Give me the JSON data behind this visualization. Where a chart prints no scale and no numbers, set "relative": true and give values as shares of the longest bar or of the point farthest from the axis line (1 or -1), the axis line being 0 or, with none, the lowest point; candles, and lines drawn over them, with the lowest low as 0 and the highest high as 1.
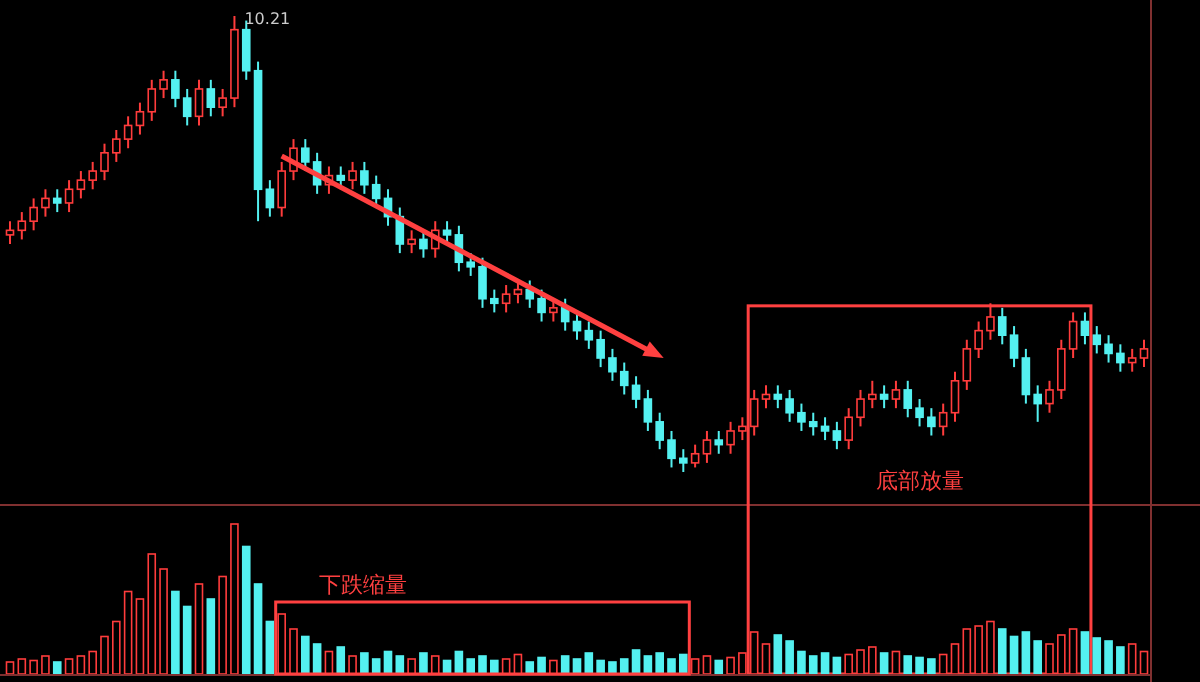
{
  "chart_data": [
    {
      "type": "candlestick",
      "relative": true,
      "categories": [
        null,
        null,
        null,
        null,
        null,
        null,
        null,
        null,
        null,
        null,
        null,
        null,
        null,
        null,
        null,
        null,
        null,
        null,
        null,
        null,
        null,
        null,
        null,
        null,
        null,
        null,
        null,
        null,
        null,
        null,
        null,
        null,
        null,
        null,
        null,
        null,
        null,
        null,
        null,
        null,
        null,
        null,
        null,
        null,
        null,
        null,
        null,
        null,
        null,
        null,
        null,
        null,
        null,
        null,
        null,
        null,
        null,
        null,
        null,
        null,
        null,
        null,
        null,
        null,
        null,
        null,
        null,
        null,
        null,
        null,
        null,
        null,
        null,
        null,
        null,
        null,
        null,
        null,
        null,
        null,
        null,
        null,
        null,
        null,
        null,
        null,
        null,
        null,
        null,
        null,
        null,
        null,
        null,
        null,
        null,
        null,
        null
      ],
      "ohlc": [
        [
          0.52,
          0.55,
          0.5,
          0.53
        ],
        [
          0.53,
          0.57,
          0.51,
          0.55
        ],
        [
          0.55,
          0.6,
          0.53,
          0.58
        ],
        [
          0.58,
          0.62,
          0.56,
          0.6
        ],
        [
          0.6,
          0.62,
          0.57,
          0.59
        ],
        [
          0.59,
          0.64,
          0.57,
          0.62
        ],
        [
          0.62,
          0.66,
          0.6,
          0.64
        ],
        [
          0.64,
          0.68,
          0.62,
          0.66
        ],
        [
          0.66,
          0.72,
          0.64,
          0.7
        ],
        [
          0.7,
          0.75,
          0.68,
          0.73
        ],
        [
          0.73,
          0.78,
          0.71,
          0.76
        ],
        [
          0.76,
          0.81,
          0.74,
          0.79
        ],
        [
          0.79,
          0.86,
          0.77,
          0.84
        ],
        [
          0.84,
          0.88,
          0.82,
          0.86
        ],
        [
          0.86,
          0.88,
          0.8,
          0.82
        ],
        [
          0.82,
          0.84,
          0.76,
          0.78
        ],
        [
          0.78,
          0.86,
          0.76,
          0.84
        ],
        [
          0.84,
          0.86,
          0.78,
          0.8
        ],
        [
          0.8,
          0.84,
          0.78,
          0.82
        ],
        [
          0.82,
          1.0,
          0.8,
          0.97
        ],
        [
          0.97,
          0.99,
          0.86,
          0.88
        ],
        [
          0.88,
          0.9,
          0.55,
          0.62
        ],
        [
          0.62,
          0.64,
          0.56,
          0.58
        ],
        [
          0.58,
          0.68,
          0.56,
          0.66
        ],
        [
          0.66,
          0.73,
          0.64,
          0.71
        ],
        [
          0.71,
          0.73,
          0.66,
          0.68
        ],
        [
          0.68,
          0.7,
          0.61,
          0.63
        ],
        [
          0.63,
          0.67,
          0.61,
          0.65
        ],
        [
          0.65,
          0.67,
          0.62,
          0.64
        ],
        [
          0.64,
          0.68,
          0.62,
          0.66
        ],
        [
          0.66,
          0.68,
          0.61,
          0.63
        ],
        [
          0.63,
          0.65,
          0.58,
          0.6
        ],
        [
          0.6,
          0.62,
          0.54,
          0.56
        ],
        [
          0.56,
          0.58,
          0.48,
          0.5
        ],
        [
          0.5,
          0.53,
          0.48,
          0.51
        ],
        [
          0.51,
          0.53,
          0.47,
          0.49
        ],
        [
          0.49,
          0.55,
          0.47,
          0.53
        ],
        [
          0.53,
          0.55,
          0.5,
          0.52
        ],
        [
          0.52,
          0.54,
          0.44,
          0.46
        ],
        [
          0.46,
          0.48,
          0.43,
          0.45
        ],
        [
          0.45,
          0.47,
          0.36,
          0.38
        ],
        [
          0.38,
          0.4,
          0.35,
          0.37
        ],
        [
          0.37,
          0.41,
          0.35,
          0.39
        ],
        [
          0.39,
          0.42,
          0.37,
          0.4
        ],
        [
          0.4,
          0.42,
          0.36,
          0.38
        ],
        [
          0.38,
          0.4,
          0.33,
          0.35
        ],
        [
          0.35,
          0.38,
          0.33,
          0.36
        ],
        [
          0.36,
          0.38,
          0.31,
          0.33
        ],
        [
          0.33,
          0.35,
          0.29,
          0.31
        ],
        [
          0.31,
          0.33,
          0.27,
          0.29
        ],
        [
          0.29,
          0.31,
          0.23,
          0.25
        ],
        [
          0.25,
          0.27,
          0.2,
          0.22
        ],
        [
          0.22,
          0.24,
          0.17,
          0.19
        ],
        [
          0.19,
          0.21,
          0.14,
          0.16
        ],
        [
          0.16,
          0.18,
          0.09,
          0.11
        ],
        [
          0.11,
          0.13,
          0.05,
          0.07
        ],
        [
          0.07,
          0.09,
          0.01,
          0.03
        ],
        [
          0.03,
          0.05,
          0.0,
          0.02
        ],
        [
          0.02,
          0.06,
          0.01,
          0.04
        ],
        [
          0.04,
          0.09,
          0.02,
          0.07
        ],
        [
          0.07,
          0.09,
          0.04,
          0.06
        ],
        [
          0.06,
          0.11,
          0.04,
          0.09
        ],
        [
          0.09,
          0.12,
          0.07,
          0.1
        ],
        [
          0.1,
          0.18,
          0.08,
          0.16
        ],
        [
          0.16,
          0.19,
          0.14,
          0.17
        ],
        [
          0.17,
          0.19,
          0.14,
          0.16
        ],
        [
          0.16,
          0.18,
          0.11,
          0.13
        ],
        [
          0.13,
          0.15,
          0.09,
          0.11
        ],
        [
          0.11,
          0.13,
          0.08,
          0.1
        ],
        [
          0.1,
          0.12,
          0.07,
          0.09
        ],
        [
          0.09,
          0.11,
          0.05,
          0.07
        ],
        [
          0.07,
          0.14,
          0.05,
          0.12
        ],
        [
          0.12,
          0.18,
          0.1,
          0.16
        ],
        [
          0.16,
          0.2,
          0.14,
          0.17
        ],
        [
          0.17,
          0.19,
          0.14,
          0.16
        ],
        [
          0.16,
          0.2,
          0.14,
          0.18
        ],
        [
          0.18,
          0.2,
          0.12,
          0.14
        ],
        [
          0.14,
          0.16,
          0.1,
          0.12
        ],
        [
          0.12,
          0.14,
          0.08,
          0.1
        ],
        [
          0.1,
          0.15,
          0.08,
          0.13
        ],
        [
          0.13,
          0.22,
          0.11,
          0.2
        ],
        [
          0.2,
          0.29,
          0.18,
          0.27
        ],
        [
          0.27,
          0.33,
          0.25,
          0.31
        ],
        [
          0.31,
          0.37,
          0.29,
          0.34
        ],
        [
          0.34,
          0.36,
          0.28,
          0.3
        ],
        [
          0.3,
          0.32,
          0.23,
          0.25
        ],
        [
          0.25,
          0.27,
          0.15,
          0.17
        ],
        [
          0.17,
          0.19,
          0.11,
          0.15
        ],
        [
          0.15,
          0.2,
          0.13,
          0.18
        ],
        [
          0.18,
          0.29,
          0.16,
          0.27
        ],
        [
          0.27,
          0.35,
          0.25,
          0.33
        ],
        [
          0.33,
          0.35,
          0.28,
          0.3
        ],
        [
          0.3,
          0.32,
          0.26,
          0.28
        ],
        [
          0.28,
          0.3,
          0.24,
          0.26
        ],
        [
          0.26,
          0.28,
          0.22,
          0.24
        ],
        [
          0.24,
          0.27,
          0.22,
          0.25
        ],
        [
          0.25,
          0.29,
          0.23,
          0.27
        ]
      ],
      "annotations": [
        "10.21",
        "底部放量"
      ]
    },
    {
      "type": "bar",
      "relative": true,
      "categories": [
        null,
        null,
        null,
        null,
        null,
        null,
        null,
        null,
        null,
        null,
        null,
        null,
        null,
        null,
        null,
        null,
        null,
        null,
        null,
        null,
        null,
        null,
        null,
        null,
        null,
        null,
        null,
        null,
        null,
        null,
        null,
        null,
        null,
        null,
        null,
        null,
        null,
        null,
        null,
        null,
        null,
        null,
        null,
        null,
        null,
        null,
        null,
        null,
        null,
        null,
        null,
        null,
        null,
        null,
        null,
        null,
        null,
        null,
        null,
        null,
        null,
        null,
        null,
        null,
        null,
        null,
        null,
        null,
        null,
        null,
        null,
        null,
        null,
        null,
        null,
        null,
        null,
        null,
        null,
        null,
        null,
        null,
        null,
        null,
        null,
        null,
        null,
        null,
        null,
        null,
        null,
        null,
        null,
        null,
        null,
        null,
        null
      ],
      "values": [
        0.08,
        0.1,
        0.09,
        0.12,
        0.08,
        0.1,
        0.12,
        0.15,
        0.25,
        0.35,
        0.55,
        0.5,
        0.8,
        0.7,
        0.55,
        0.45,
        0.6,
        0.5,
        0.65,
        1.0,
        0.85,
        0.6,
        0.35,
        0.4,
        0.3,
        0.25,
        0.2,
        0.15,
        0.18,
        0.12,
        0.14,
        0.1,
        0.15,
        0.12,
        0.1,
        0.14,
        0.12,
        0.09,
        0.15,
        0.1,
        0.12,
        0.09,
        0.1,
        0.13,
        0.08,
        0.11,
        0.09,
        0.12,
        0.1,
        0.14,
        0.09,
        0.08,
        0.1,
        0.16,
        0.12,
        0.14,
        0.1,
        0.13,
        0.1,
        0.12,
        0.09,
        0.11,
        0.14,
        0.28,
        0.2,
        0.26,
        0.22,
        0.15,
        0.12,
        0.14,
        0.11,
        0.13,
        0.16,
        0.18,
        0.14,
        0.15,
        0.12,
        0.11,
        0.1,
        0.13,
        0.2,
        0.3,
        0.32,
        0.35,
        0.3,
        0.25,
        0.28,
        0.22,
        0.2,
        0.26,
        0.3,
        0.28,
        0.24,
        0.22,
        0.18,
        0.2,
        0.15
      ],
      "annotations": [
        "下跌缩量"
      ]
    }
  ]
}
